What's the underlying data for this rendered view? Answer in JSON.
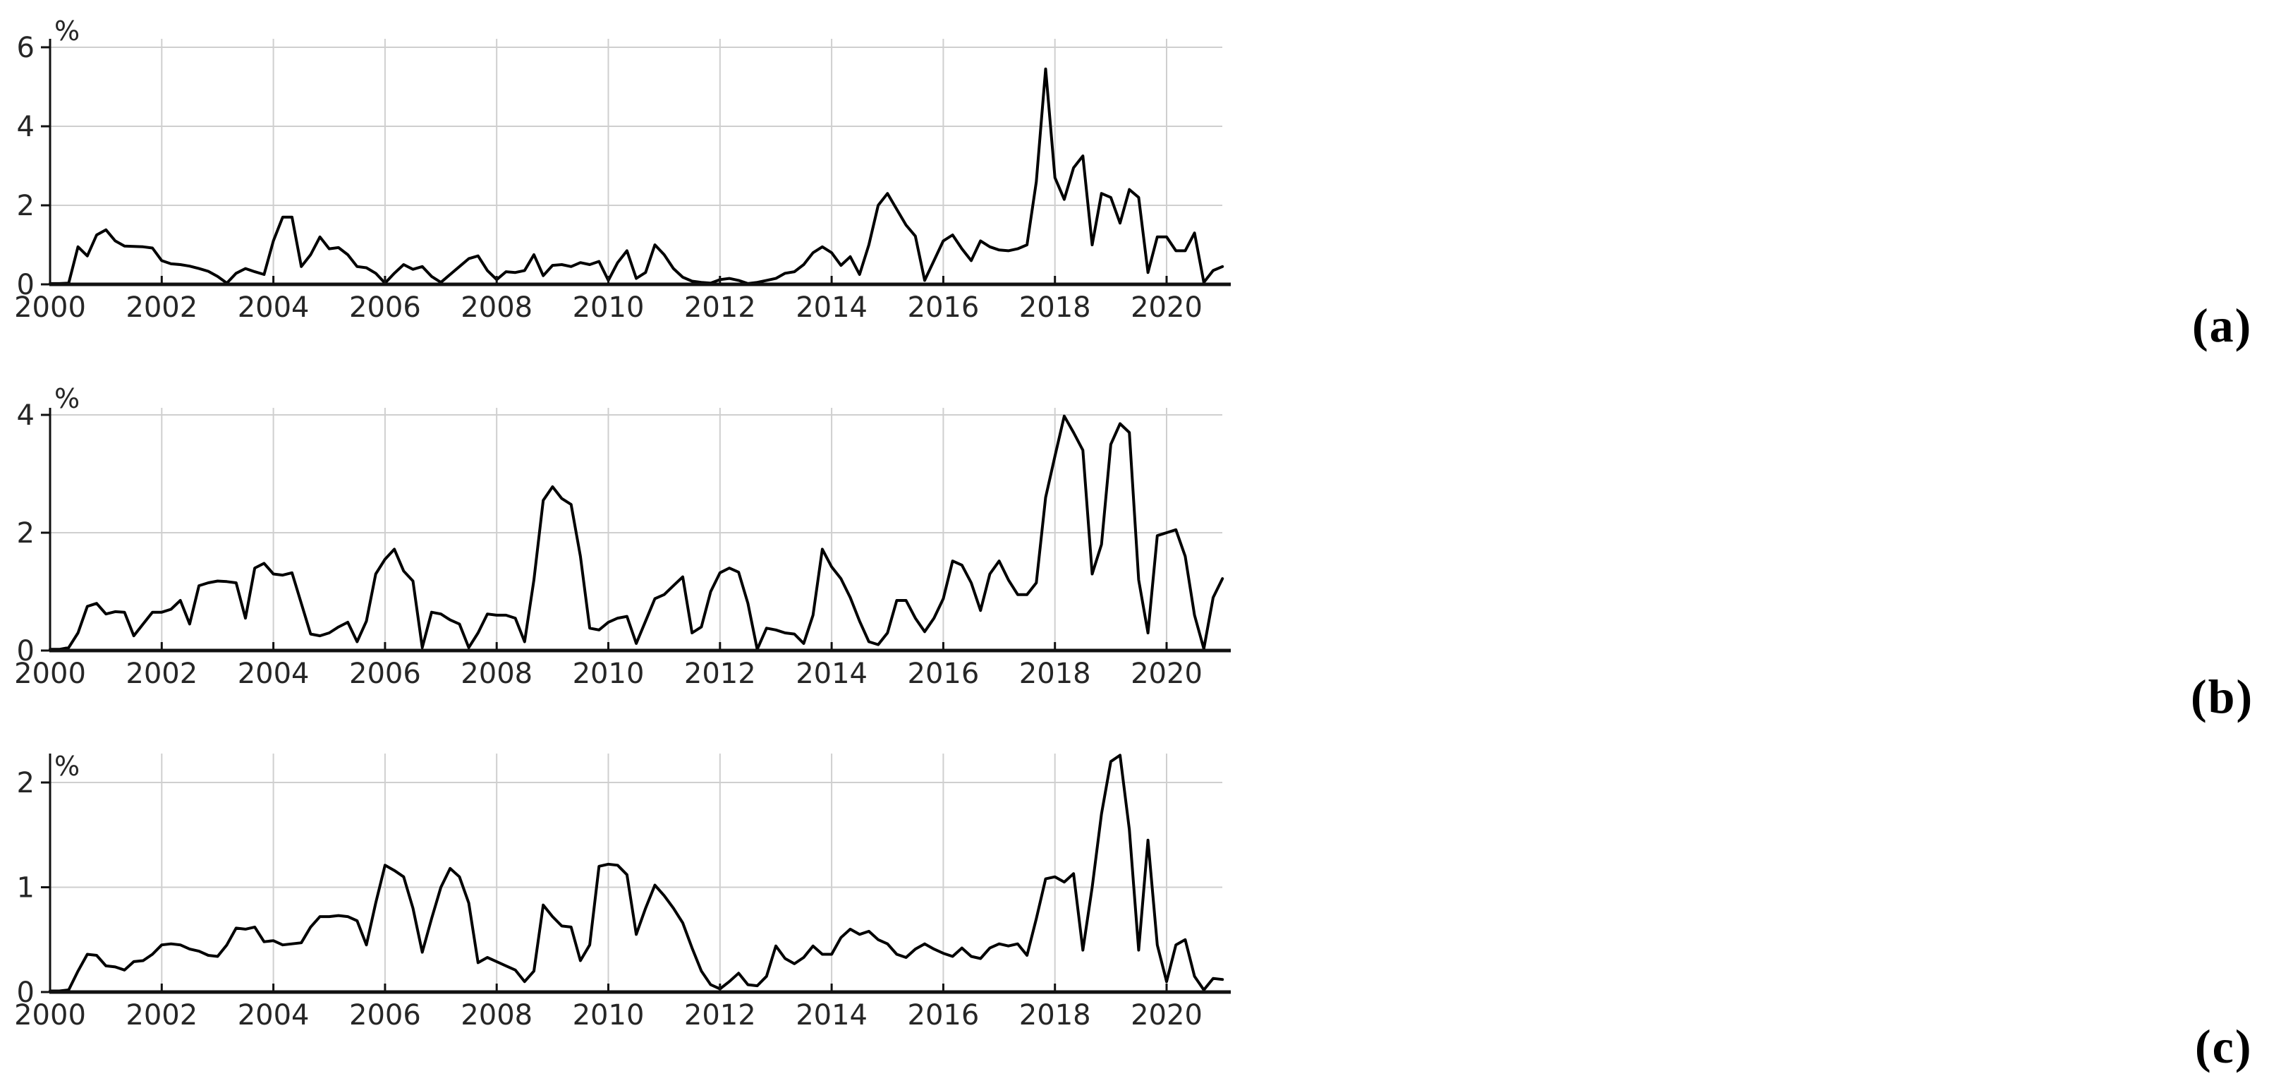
{
  "panels": [
    {
      "label": "(a)"
    },
    {
      "label": "(b)"
    },
    {
      "label": "(c)"
    }
  ],
  "chart_data": [
    {
      "type": "line",
      "panel": "(a)",
      "title": "",
      "xlabel": "",
      "ylabel": "%",
      "x_start": 2000.0,
      "x_end": 2021.0,
      "x_step_years": 0.16667,
      "x_sampling": "bimonthly estimates read from plot",
      "xticks": [
        2000,
        2002,
        2004,
        2006,
        2008,
        2010,
        2012,
        2014,
        2016,
        2018,
        2020
      ],
      "yticks": [
        0,
        2,
        4,
        6
      ],
      "ylim": [
        0,
        6.2
      ],
      "grid": true,
      "legend": "none",
      "line_color": "#000000",
      "grid_color": "#cfcfcf",
      "values": [
        0.02,
        0.02,
        0.03,
        0.95,
        0.72,
        1.25,
        1.38,
        1.1,
        0.97,
        0.96,
        0.95,
        0.92,
        0.6,
        0.52,
        0.5,
        0.46,
        0.4,
        0.33,
        0.2,
        0.03,
        0.28,
        0.4,
        0.32,
        0.25,
        1.1,
        1.7,
        1.7,
        0.45,
        0.75,
        1.2,
        0.9,
        0.93,
        0.75,
        0.45,
        0.42,
        0.28,
        0.03,
        0.28,
        0.5,
        0.38,
        0.45,
        0.2,
        0.05,
        0.25,
        0.45,
        0.65,
        0.72,
        0.35,
        0.12,
        0.32,
        0.3,
        0.35,
        0.75,
        0.22,
        0.48,
        0.5,
        0.45,
        0.55,
        0.5,
        0.58,
        0.1,
        0.55,
        0.85,
        0.15,
        0.3,
        1.0,
        0.75,
        0.4,
        0.18,
        0.08,
        0.05,
        0.03,
        0.12,
        0.15,
        0.1,
        0.02,
        0.05,
        0.1,
        0.15,
        0.28,
        0.32,
        0.5,
        0.8,
        0.95,
        0.8,
        0.48,
        0.7,
        0.25,
        1.0,
        2.0,
        2.3,
        1.9,
        1.5,
        1.22,
        0.1,
        0.6,
        1.1,
        1.25,
        0.9,
        0.6,
        1.1,
        0.95,
        0.87,
        0.85,
        0.9,
        1.0,
        2.6,
        5.45,
        2.7,
        2.15,
        2.95,
        3.25,
        1.0,
        2.3,
        2.2,
        1.55,
        2.4,
        2.2,
        0.3,
        1.2,
        1.2,
        0.85,
        0.85,
        1.3,
        0.05,
        0.35,
        0.45
      ]
    },
    {
      "type": "line",
      "panel": "(b)",
      "title": "",
      "xlabel": "",
      "ylabel": "%",
      "x_start": 2000.0,
      "x_end": 2021.0,
      "x_step_years": 0.16667,
      "x_sampling": "bimonthly estimates read from plot",
      "xticks": [
        2000,
        2002,
        2004,
        2006,
        2008,
        2010,
        2012,
        2014,
        2016,
        2018,
        2020
      ],
      "yticks": [
        0,
        2,
        4
      ],
      "ylim": [
        0,
        4.1
      ],
      "grid": true,
      "legend": "none",
      "line_color": "#000000",
      "grid_color": "#cfcfcf",
      "values": [
        0.02,
        0.02,
        0.05,
        0.3,
        0.75,
        0.8,
        0.62,
        0.66,
        0.65,
        0.25,
        0.45,
        0.65,
        0.65,
        0.7,
        0.85,
        0.45,
        1.1,
        1.15,
        1.18,
        1.17,
        1.15,
        0.55,
        1.4,
        1.48,
        1.3,
        1.28,
        1.32,
        0.8,
        0.28,
        0.25,
        0.3,
        0.4,
        0.48,
        0.15,
        0.5,
        1.3,
        1.55,
        1.72,
        1.35,
        1.18,
        0.05,
        0.65,
        0.62,
        0.52,
        0.45,
        0.05,
        0.3,
        0.62,
        0.6,
        0.6,
        0.55,
        0.15,
        1.2,
        2.55,
        2.78,
        2.58,
        2.48,
        1.6,
        0.38,
        0.35,
        0.48,
        0.55,
        0.58,
        0.12,
        0.5,
        0.88,
        0.95,
        1.1,
        1.25,
        0.3,
        0.4,
        1.0,
        1.32,
        1.4,
        1.33,
        0.8,
        0.02,
        0.38,
        0.35,
        0.3,
        0.28,
        0.12,
        0.6,
        1.72,
        1.42,
        1.22,
        0.9,
        0.5,
        0.15,
        0.1,
        0.3,
        0.85,
        0.85,
        0.55,
        0.32,
        0.55,
        0.88,
        1.52,
        1.45,
        1.15,
        0.68,
        1.3,
        1.52,
        1.2,
        0.95,
        0.95,
        1.15,
        2.6,
        3.3,
        3.98,
        3.7,
        3.4,
        1.3,
        1.8,
        3.5,
        3.85,
        3.7,
        1.2,
        0.3,
        1.95,
        2.0,
        2.05,
        1.6,
        0.6,
        0.03,
        0.9,
        1.22
      ]
    },
    {
      "type": "line",
      "panel": "(c)",
      "title": "",
      "xlabel": "",
      "ylabel": "%",
      "x_start": 2000.0,
      "x_end": 2021.0,
      "x_step_years": 0.16667,
      "x_sampling": "bimonthly estimates read from plot",
      "xticks": [
        2000,
        2002,
        2004,
        2006,
        2008,
        2010,
        2012,
        2014,
        2016,
        2018,
        2020
      ],
      "yticks": [
        0,
        1,
        2
      ],
      "ylim": [
        0,
        2.28
      ],
      "grid": true,
      "legend": "none",
      "line_color": "#000000",
      "grid_color": "#cfcfcf",
      "values": [
        0.01,
        0.01,
        0.02,
        0.2,
        0.36,
        0.35,
        0.25,
        0.24,
        0.21,
        0.29,
        0.3,
        0.36,
        0.45,
        0.46,
        0.45,
        0.41,
        0.39,
        0.35,
        0.34,
        0.45,
        0.61,
        0.6,
        0.62,
        0.48,
        0.49,
        0.45,
        0.46,
        0.47,
        0.62,
        0.72,
        0.72,
        0.73,
        0.72,
        0.68,
        0.45,
        0.85,
        1.21,
        1.16,
        1.1,
        0.8,
        0.38,
        0.7,
        1.0,
        1.18,
        1.1,
        0.85,
        0.28,
        0.33,
        0.29,
        0.25,
        0.21,
        0.1,
        0.2,
        0.83,
        0.72,
        0.63,
        0.62,
        0.3,
        0.45,
        1.2,
        1.22,
        1.21,
        1.12,
        0.55,
        0.8,
        1.02,
        0.92,
        0.8,
        0.66,
        0.42,
        0.2,
        0.07,
        0.03,
        0.1,
        0.18,
        0.07,
        0.06,
        0.15,
        0.44,
        0.32,
        0.27,
        0.33,
        0.44,
        0.36,
        0.36,
        0.52,
        0.6,
        0.55,
        0.58,
        0.5,
        0.46,
        0.36,
        0.33,
        0.41,
        0.46,
        0.41,
        0.37,
        0.34,
        0.42,
        0.34,
        0.32,
        0.42,
        0.46,
        0.44,
        0.46,
        0.35,
        0.7,
        1.08,
        1.1,
        1.05,
        1.13,
        0.4,
        1.0,
        1.7,
        2.2,
        2.26,
        1.55,
        0.4,
        1.45,
        0.45,
        0.1,
        0.45,
        0.5,
        0.15,
        0.02,
        0.13,
        0.12
      ]
    }
  ]
}
